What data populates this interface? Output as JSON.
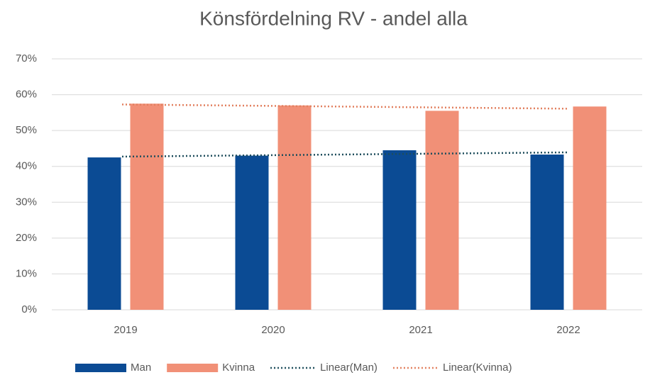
{
  "chart_data": {
    "type": "bar",
    "title": "Könsfördelning RV - andel alla",
    "categories": [
      "2019",
      "2020",
      "2021",
      "2022"
    ],
    "series": [
      {
        "name": "Man",
        "color": "#0b4b94",
        "values": [
          42.5,
          43,
          44.5,
          43.3
        ]
      },
      {
        "name": "Kvinna",
        "color": "#f19077",
        "values": [
          57.5,
          57,
          55.5,
          56.7
        ]
      }
    ],
    "trendlines": [
      {
        "name": "Linear(Man)",
        "color": "#1e4d5c"
      },
      {
        "name": "Linear(Kvinna)",
        "color": "#e2805f"
      }
    ],
    "ylim": [
      0,
      70
    ],
    "yticks": [
      {
        "value": 0,
        "label": "0%"
      },
      {
        "value": 10,
        "label": "10%"
      },
      {
        "value": 20,
        "label": "20%"
      },
      {
        "value": 30,
        "label": "30%"
      },
      {
        "value": 40,
        "label": "40%"
      },
      {
        "value": 50,
        "label": "50%"
      },
      {
        "value": 60,
        "label": "60%"
      },
      {
        "value": 70,
        "label": "70%"
      }
    ],
    "grid": true,
    "legend": "bottom"
  }
}
